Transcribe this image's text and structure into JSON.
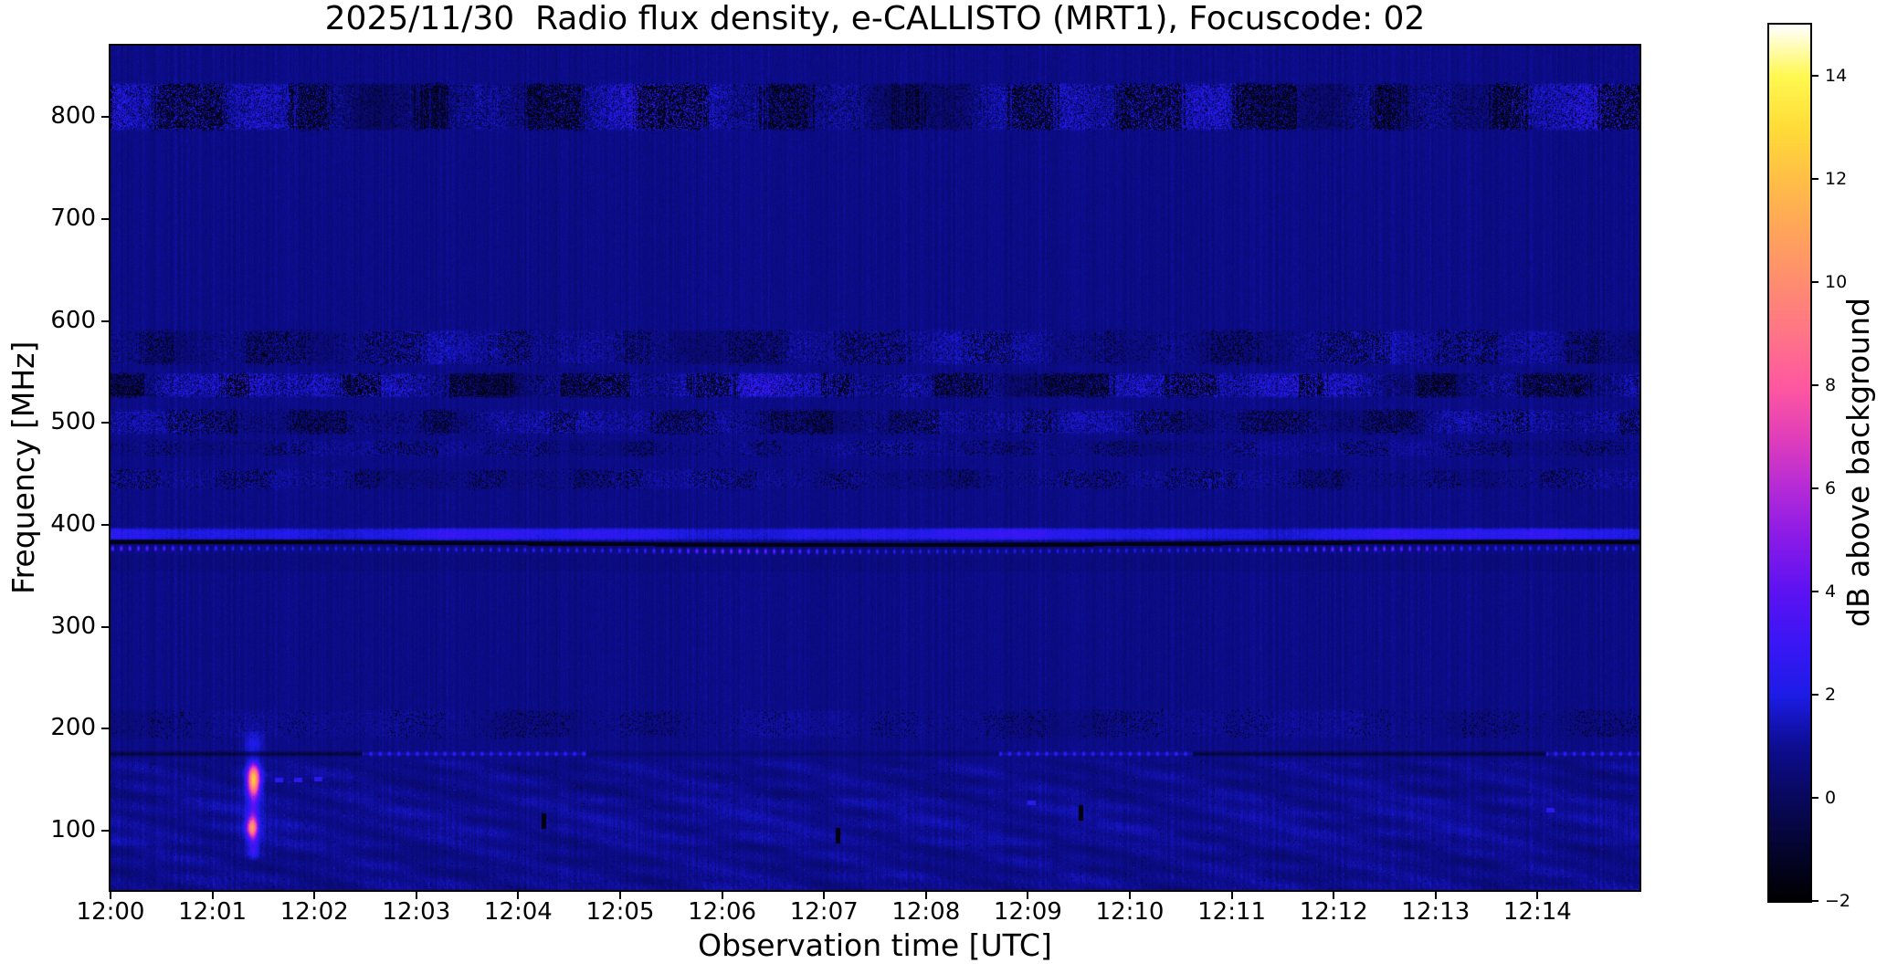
{
  "chart_data": {
    "type": "heatmap",
    "title": "2025/11/30  Radio flux density, e-CALLISTO (MRT1), Focuscode: 02",
    "date": "2025/11/30",
    "instrument": "e-CALLISTO (MRT1)",
    "focuscode": "02",
    "xlabel": "Observation time [UTC]",
    "ylabel": "Frequency [MHz]",
    "x_tick_labels": [
      "12:00",
      "12:01",
      "12:02",
      "12:03",
      "12:04",
      "12:05",
      "12:06",
      "12:07",
      "12:08",
      "12:09",
      "12:10",
      "12:11",
      "12:12",
      "12:13",
      "12:14"
    ],
    "x_range_utc": {
      "start": "12:00:00",
      "end": "12:15:00",
      "tick_step": "1 minute"
    },
    "y_tick_values_mhz": [
      800,
      700,
      600,
      500,
      400,
      300,
      200,
      100
    ],
    "y_tick_labels": [
      "800",
      "700",
      "600",
      "500",
      "400",
      "300",
      "200",
      "100"
    ],
    "ylim_mhz": [
      42,
      870
    ],
    "colorbar": {
      "label": "dB above background",
      "tick_values": [
        14,
        12,
        10,
        8,
        6,
        4,
        2,
        0,
        -2
      ],
      "tick_labels": [
        "14",
        "12",
        "10",
        "8",
        "6",
        "4",
        "2",
        "0",
        "−2"
      ],
      "vlim": [
        -2,
        15
      ],
      "colormap_stops": [
        [
          -2,
          0,
          0,
          0
        ],
        [
          0,
          8,
          8,
          92
        ],
        [
          1,
          13,
          13,
          145
        ],
        [
          2,
          28,
          28,
          230
        ],
        [
          3,
          58,
          22,
          245
        ],
        [
          4,
          92,
          18,
          242
        ],
        [
          5,
          135,
          26,
          232
        ],
        [
          6,
          180,
          42,
          216
        ],
        [
          7,
          225,
          62,
          186
        ],
        [
          8,
          255,
          88,
          160
        ],
        [
          9,
          255,
          116,
          135
        ],
        [
          10,
          255,
          140,
          112
        ],
        [
          11,
          255,
          164,
          90
        ],
        [
          12,
          255,
          190,
          70
        ],
        [
          13,
          255,
          220,
          56
        ],
        [
          14,
          255,
          248,
          80
        ],
        [
          15,
          255,
          255,
          255
        ]
      ]
    },
    "background_level_db": 0.8,
    "features": {
      "bands": [
        {
          "name": "interference band 786-834 MHz",
          "f0": 786,
          "f1": 834,
          "base": 0.15,
          "amp": 0.95,
          "speckle": 1.5,
          "dark": 0.32
        },
        {
          "name": "interference band 556-592 MHz",
          "f0": 556,
          "f1": 592,
          "base": 0.05,
          "amp": 0.5,
          "speckle": 0.95,
          "dark": 0.16
        },
        {
          "name": "interference band 524-550 MHz",
          "f0": 524,
          "f1": 550,
          "base": 0.25,
          "amp": 0.95,
          "speckle": 1.6,
          "dark": 0.3
        },
        {
          "name": "interference band 488-514 MHz",
          "f0": 488,
          "f1": 514,
          "base": 0.05,
          "amp": 0.5,
          "speckle": 1.1,
          "dark": 0.2
        },
        {
          "name": "faint band 466-484 MHz",
          "f0": 466,
          "f1": 484,
          "base": 0.0,
          "amp": 0.3,
          "speckle": 0.6,
          "dark": 0.1
        },
        {
          "name": "faint band 434-456 MHz",
          "f0": 434,
          "f1": 456,
          "base": 0.0,
          "amp": 0.3,
          "speckle": 0.7,
          "dark": 0.13
        },
        {
          "name": "bright blue band 384-398 MHz",
          "f0": 384,
          "f1": 398,
          "base": 1.5,
          "amp": 0.7,
          "speckle": 0.45,
          "dark": 0
        },
        {
          "name": "faint band 190-220 MHz",
          "f0": 190,
          "f1": 220,
          "base": 0.02,
          "amp": 0.25,
          "speckle": 0.4,
          "dark": 0.06
        }
      ],
      "black_stripe": {
        "f_center_mhz": 381,
        "half_width_mhz": 3.4,
        "description": "black absorption-like stripe just below 390 MHz band"
      },
      "dotted_line": {
        "f_center_mhz": 375.4,
        "description": "periodic bright dots alternating blue to magenta along ~375 MHz"
      },
      "line_175": {
        "f_center": 175.5,
        "segments": [
          {
            "t0": 0,
            "t1": 148,
            "mode": "dark"
          },
          {
            "t0": 148,
            "t1": 280,
            "mode": "bright"
          },
          {
            "t0": 280,
            "t1": 523,
            "mode": "faint"
          },
          {
            "t0": 523,
            "t1": 637,
            "mode": "bright"
          },
          {
            "t0": 637,
            "t1": 845,
            "mode": "dark"
          },
          {
            "t0": 845,
            "t1": 900,
            "mode": "bright"
          }
        ]
      },
      "low_band": {
        "f0": 42,
        "f1": 168,
        "description": "mottled noisy region below ~170 MHz"
      },
      "burst": {
        "time_utc": "12:01:24",
        "description": "compact bright burst near 150 MHz (salmon core ~10 dB) and 105 MHz (pink ~8 dB) with faint vertical streak",
        "blobs": [
          {
            "t": 84,
            "f": 150,
            "peak": 9.5,
            "st": 2.6,
            "sf": 10
          },
          {
            "t": 83,
            "f": 104,
            "peak": 7.5,
            "st": 2.2,
            "sf": 7
          },
          {
            "t": 84,
            "f": 186,
            "peak": 1.4,
            "st": 4,
            "sf": 8
          }
        ],
        "streak": {
          "t": 84,
          "f0": 70,
          "f1": 170,
          "peak": 2.0
        }
      },
      "dashes_bright": [
        {
          "t": 97,
          "f": 150
        },
        {
          "t": 108,
          "f": 150
        },
        {
          "t": 120,
          "f": 151
        },
        {
          "t": 540,
          "f": 128
        },
        {
          "t": 845,
          "f": 121
        }
      ],
      "dashes_dark": [
        {
          "t": 255,
          "f": 110
        },
        {
          "t": 428,
          "f": 96
        },
        {
          "t": 571,
          "f": 118
        }
      ]
    }
  }
}
